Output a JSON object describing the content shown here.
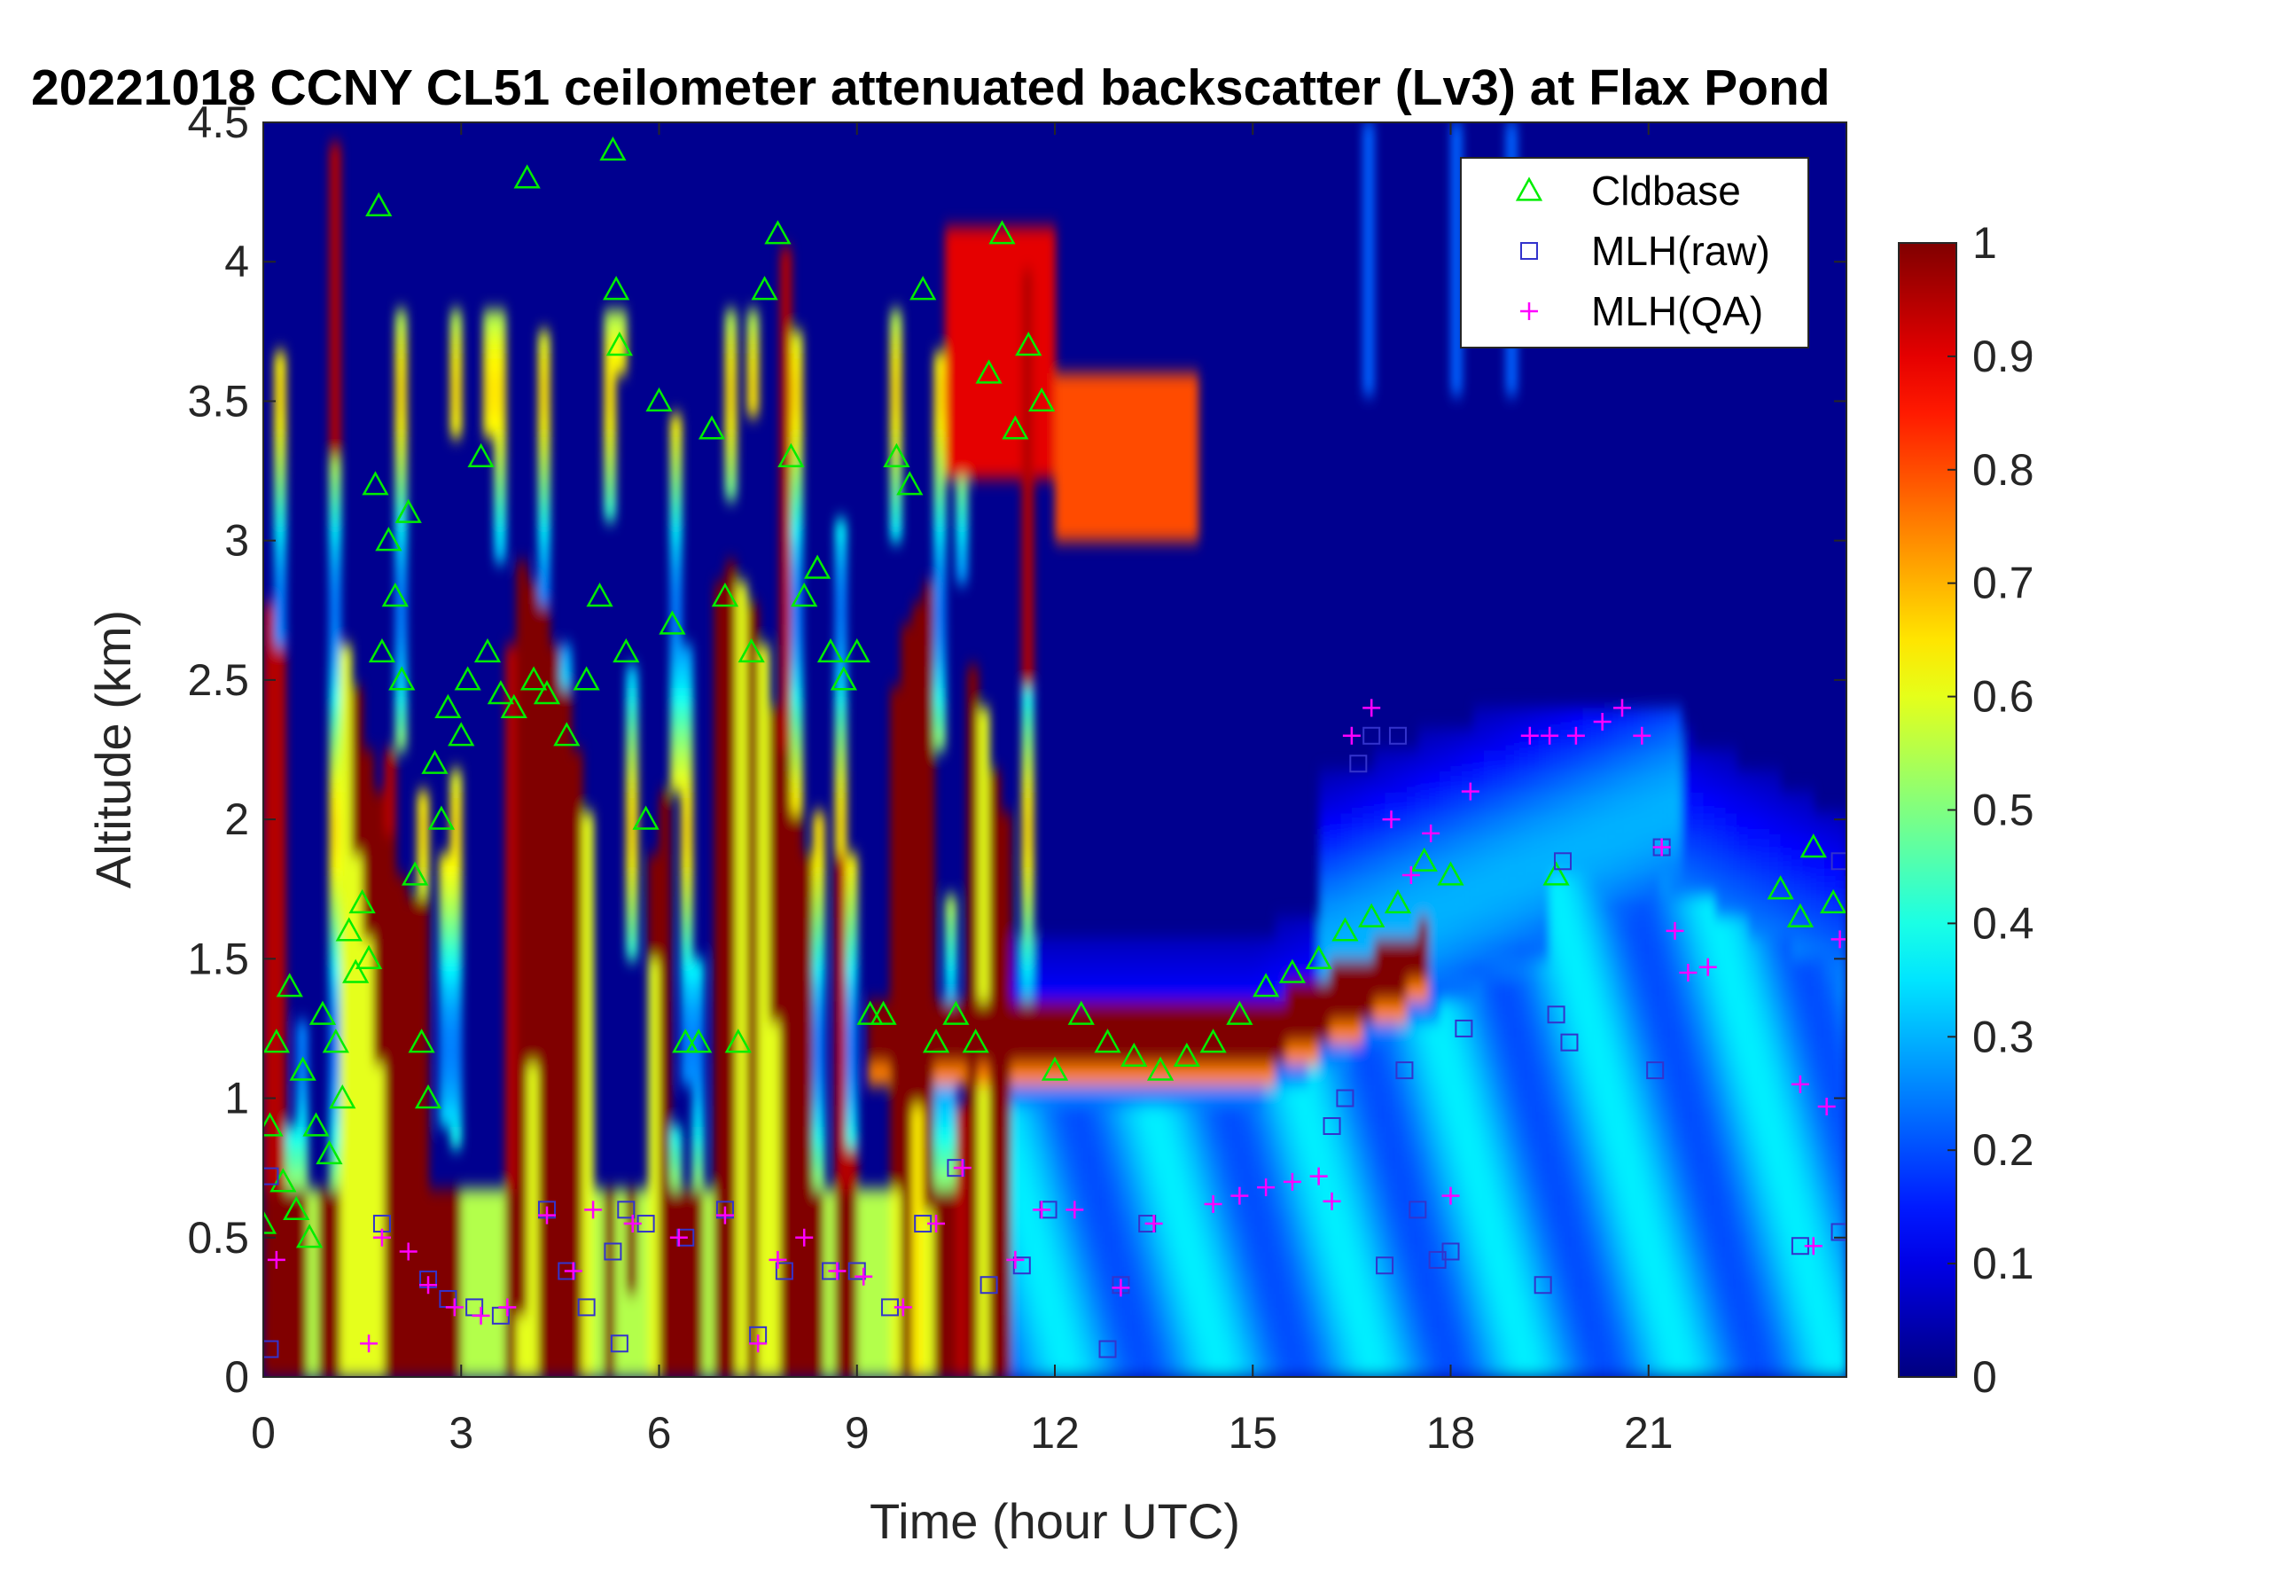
{
  "chart_data": {
    "type": "heatmap",
    "title": "20221018 CCNY CL51 ceilometer attenuated backscatter (Lv3) at Flax Pond",
    "xlabel": "Time (hour UTC)",
    "ylabel": "Altitude (km)",
    "xlim": [
      0,
      24
    ],
    "ylim": [
      0,
      4.5
    ],
    "xticks": [
      "0",
      "3",
      "6",
      "9",
      "12",
      "15",
      "18",
      "21"
    ],
    "yticks": [
      "0",
      "0.5",
      "1",
      "1.5",
      "2",
      "2.5",
      "3",
      "3.5",
      "4",
      "4.5"
    ],
    "colorbar": {
      "colormap": "jet",
      "range": [
        0,
        1
      ],
      "ticks": [
        "0",
        "0.1",
        "0.2",
        "0.3",
        "0.4",
        "0.5",
        "0.6",
        "0.7",
        "0.8",
        "0.9",
        "1"
      ]
    },
    "legend": {
      "placement": "top-right",
      "entries": [
        "Cldbase",
        "MLH(raw)",
        "MLH(QA)"
      ]
    },
    "grid": false,
    "series": [
      {
        "name": "Cldbase",
        "marker": "triangle",
        "color": "#00ee00",
        "points": [
          [
            0.0,
            0.55
          ],
          [
            0.1,
            0.9
          ],
          [
            0.2,
            1.2
          ],
          [
            0.3,
            0.7
          ],
          [
            0.4,
            1.4
          ],
          [
            0.5,
            0.6
          ],
          [
            0.6,
            1.1
          ],
          [
            0.7,
            0.5
          ],
          [
            0.8,
            0.9
          ],
          [
            0.9,
            1.3
          ],
          [
            1.0,
            0.8
          ],
          [
            1.1,
            1.2
          ],
          [
            1.2,
            1.0
          ],
          [
            1.3,
            1.6
          ],
          [
            1.4,
            1.45
          ],
          [
            1.5,
            1.7
          ],
          [
            1.6,
            1.5
          ],
          [
            1.7,
            3.2
          ],
          [
            1.75,
            4.2
          ],
          [
            1.8,
            2.6
          ],
          [
            1.9,
            3.0
          ],
          [
            2.0,
            2.8
          ],
          [
            2.1,
            2.5
          ],
          [
            2.2,
            3.1
          ],
          [
            2.3,
            1.8
          ],
          [
            2.4,
            1.2
          ],
          [
            2.5,
            1.0
          ],
          [
            2.6,
            2.2
          ],
          [
            2.7,
            2.0
          ],
          [
            2.8,
            2.4
          ],
          [
            3.0,
            2.3
          ],
          [
            3.1,
            2.5
          ],
          [
            3.3,
            3.3
          ],
          [
            3.4,
            2.6
          ],
          [
            3.6,
            2.45
          ],
          [
            3.8,
            2.4
          ],
          [
            4.0,
            4.3
          ],
          [
            4.1,
            2.5
          ],
          [
            4.3,
            2.45
          ],
          [
            4.6,
            2.3
          ],
          [
            4.9,
            2.5
          ],
          [
            5.1,
            2.8
          ],
          [
            5.3,
            4.4
          ],
          [
            5.35,
            3.9
          ],
          [
            5.4,
            3.7
          ],
          [
            5.5,
            2.6
          ],
          [
            5.8,
            2.0
          ],
          [
            6.0,
            3.5
          ],
          [
            6.2,
            2.7
          ],
          [
            6.4,
            1.2
          ],
          [
            6.6,
            1.2
          ],
          [
            6.8,
            3.4
          ],
          [
            7.0,
            2.8
          ],
          [
            7.2,
            1.2
          ],
          [
            7.4,
            2.6
          ],
          [
            7.6,
            3.9
          ],
          [
            7.8,
            4.1
          ],
          [
            8.0,
            3.3
          ],
          [
            8.2,
            2.8
          ],
          [
            8.4,
            2.9
          ],
          [
            8.6,
            2.6
          ],
          [
            8.8,
            2.5
          ],
          [
            9.0,
            2.6
          ],
          [
            9.2,
            1.3
          ],
          [
            9.4,
            1.3
          ],
          [
            9.6,
            3.3
          ],
          [
            9.8,
            3.2
          ],
          [
            10.0,
            3.9
          ],
          [
            10.2,
            1.2
          ],
          [
            10.5,
            1.3
          ],
          [
            10.8,
            1.2
          ],
          [
            11.0,
            3.6
          ],
          [
            11.2,
            4.1
          ],
          [
            11.4,
            3.4
          ],
          [
            11.6,
            3.7
          ],
          [
            11.8,
            3.5
          ],
          [
            12.0,
            1.1
          ],
          [
            12.4,
            1.3
          ],
          [
            12.8,
            1.2
          ],
          [
            13.2,
            1.15
          ],
          [
            13.6,
            1.1
          ],
          [
            14.0,
            1.15
          ],
          [
            14.4,
            1.2
          ],
          [
            14.8,
            1.3
          ],
          [
            15.2,
            1.4
          ],
          [
            15.6,
            1.45
          ],
          [
            16.0,
            1.5
          ],
          [
            16.4,
            1.6
          ],
          [
            16.8,
            1.65
          ],
          [
            17.2,
            1.7
          ],
          [
            17.6,
            1.85
          ],
          [
            18.0,
            1.8
          ],
          [
            19.6,
            1.8
          ],
          [
            23.0,
            1.75
          ],
          [
            23.3,
            1.65
          ],
          [
            23.5,
            1.9
          ],
          [
            23.8,
            1.7
          ]
        ]
      },
      {
        "name": "MLH(raw)",
        "marker": "square",
        "color": "#3333cc",
        "points": [
          [
            0.1,
            0.1
          ],
          [
            0.1,
            0.72
          ],
          [
            1.8,
            0.55
          ],
          [
            2.5,
            0.35
          ],
          [
            2.8,
            0.28
          ],
          [
            3.2,
            0.25
          ],
          [
            3.6,
            0.22
          ],
          [
            4.3,
            0.6
          ],
          [
            4.6,
            0.38
          ],
          [
            4.9,
            0.25
          ],
          [
            5.3,
            0.45
          ],
          [
            5.4,
            0.12
          ],
          [
            5.5,
            0.6
          ],
          [
            5.8,
            0.55
          ],
          [
            6.4,
            0.5
          ],
          [
            7.0,
            0.6
          ],
          [
            7.5,
            0.15
          ],
          [
            7.9,
            0.38
          ],
          [
            8.6,
            0.38
          ],
          [
            9.0,
            0.38
          ],
          [
            9.5,
            0.25
          ],
          [
            10.0,
            0.55
          ],
          [
            10.5,
            0.75
          ],
          [
            11.0,
            0.33
          ],
          [
            11.5,
            0.4
          ],
          [
            11.9,
            0.6
          ],
          [
            12.8,
            0.1
          ],
          [
            13.0,
            0.33
          ],
          [
            13.4,
            0.55
          ],
          [
            16.2,
            0.9
          ],
          [
            16.4,
            1.0
          ],
          [
            16.6,
            2.2
          ],
          [
            16.8,
            2.3
          ],
          [
            17.0,
            0.4
          ],
          [
            17.2,
            2.3
          ],
          [
            17.3,
            1.1
          ],
          [
            17.5,
            0.6
          ],
          [
            17.8,
            0.42
          ],
          [
            18.0,
            0.45
          ],
          [
            18.2,
            1.25
          ],
          [
            19.4,
            0.33
          ],
          [
            19.6,
            1.3
          ],
          [
            19.8,
            1.2
          ],
          [
            19.7,
            1.85
          ],
          [
            21.1,
            1.1
          ],
          [
            21.2,
            1.9
          ],
          [
            23.3,
            0.47
          ],
          [
            23.9,
            0.52
          ],
          [
            23.9,
            1.85
          ]
        ]
      },
      {
        "name": "MLH(QA)",
        "marker": "plus",
        "color": "#ff00ff",
        "points": [
          [
            0.2,
            0.42
          ],
          [
            1.6,
            0.12
          ],
          [
            1.8,
            0.5
          ],
          [
            2.2,
            0.45
          ],
          [
            2.5,
            0.33
          ],
          [
            2.9,
            0.25
          ],
          [
            3.3,
            0.22
          ],
          [
            3.7,
            0.25
          ],
          [
            4.3,
            0.58
          ],
          [
            4.7,
            0.38
          ],
          [
            5.0,
            0.6
          ],
          [
            5.6,
            0.55
          ],
          [
            6.3,
            0.5
          ],
          [
            7.0,
            0.58
          ],
          [
            7.5,
            0.12
          ],
          [
            7.8,
            0.42
          ],
          [
            8.2,
            0.5
          ],
          [
            8.7,
            0.38
          ],
          [
            9.1,
            0.36
          ],
          [
            9.7,
            0.25
          ],
          [
            10.2,
            0.55
          ],
          [
            10.6,
            0.75
          ],
          [
            11.4,
            0.42
          ],
          [
            11.8,
            0.6
          ],
          [
            12.3,
            0.6
          ],
          [
            13.0,
            0.32
          ],
          [
            13.5,
            0.55
          ],
          [
            14.4,
            0.62
          ],
          [
            14.8,
            0.65
          ],
          [
            15.2,
            0.68
          ],
          [
            15.6,
            0.7
          ],
          [
            16.0,
            0.72
          ],
          [
            16.2,
            0.63
          ],
          [
            16.5,
            2.3
          ],
          [
            16.8,
            2.4
          ],
          [
            17.1,
            2.0
          ],
          [
            17.4,
            1.8
          ],
          [
            17.7,
            1.95
          ],
          [
            18.0,
            0.65
          ],
          [
            18.3,
            2.1
          ],
          [
            19.2,
            2.3
          ],
          [
            19.5,
            2.3
          ],
          [
            19.9,
            2.3
          ],
          [
            20.3,
            2.35
          ],
          [
            20.6,
            2.4
          ],
          [
            20.9,
            2.3
          ],
          [
            21.2,
            1.9
          ],
          [
            21.4,
            1.6
          ],
          [
            21.6,
            1.45
          ],
          [
            21.9,
            1.47
          ],
          [
            23.3,
            1.05
          ],
          [
            23.5,
            0.47
          ],
          [
            23.7,
            0.97
          ],
          [
            23.9,
            1.57
          ]
        ]
      }
    ]
  }
}
